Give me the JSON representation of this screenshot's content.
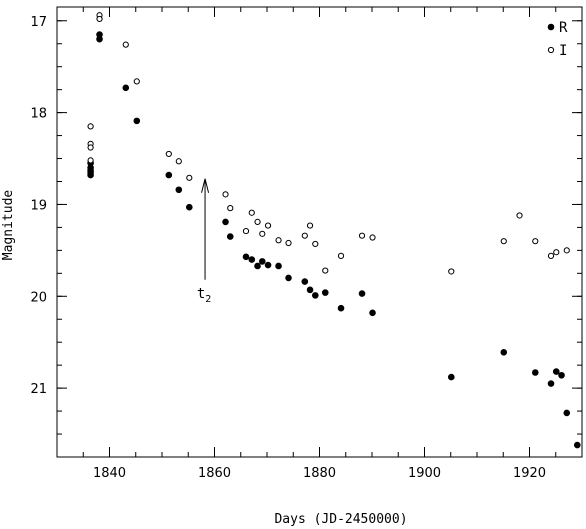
{
  "chart_data": {
    "type": "scatter",
    "xlabel": "Days (JD-2450000)",
    "ylabel": "Magnitude",
    "xlim": [
      1830,
      1930
    ],
    "ylim": [
      21.75,
      16.85
    ],
    "y_inverted": true,
    "x_ticks": [
      1840,
      1860,
      1880,
      1900,
      1920
    ],
    "x_minor_step": 5,
    "y_ticks": [
      17,
      18,
      19,
      20,
      21
    ],
    "y_minor_step": 0.25,
    "grid": false,
    "legend_position": "top-right",
    "series": [
      {
        "name": "R",
        "marker": "filled-circle",
        "color": "#000000",
        "points": [
          [
            1836.4,
            18.55
          ],
          [
            1836.4,
            18.6
          ],
          [
            1836.4,
            18.63
          ],
          [
            1836.4,
            18.65
          ],
          [
            1836.4,
            18.68
          ],
          [
            1838.1,
            17.15
          ],
          [
            1838.1,
            17.2
          ],
          [
            1843.1,
            17.73
          ],
          [
            1845.2,
            18.09
          ],
          [
            1851.3,
            18.68
          ],
          [
            1853.2,
            18.84
          ],
          [
            1855.2,
            19.03
          ],
          [
            1862.1,
            19.19
          ],
          [
            1863.0,
            19.35
          ],
          [
            1866.0,
            19.57
          ],
          [
            1867.1,
            19.6
          ],
          [
            1868.2,
            19.67
          ],
          [
            1869.1,
            19.62
          ],
          [
            1870.2,
            19.66
          ],
          [
            1872.2,
            19.67
          ],
          [
            1874.1,
            19.8
          ],
          [
            1877.2,
            19.84
          ],
          [
            1878.2,
            19.93
          ],
          [
            1879.2,
            19.99
          ],
          [
            1881.1,
            19.96
          ],
          [
            1884.1,
            20.13
          ],
          [
            1888.1,
            19.97
          ],
          [
            1890.1,
            20.18
          ],
          [
            1905.1,
            20.88
          ],
          [
            1915.1,
            20.61
          ],
          [
            1921.1,
            20.83
          ],
          [
            1924.1,
            20.95
          ],
          [
            1925.1,
            20.82
          ],
          [
            1926.1,
            20.86
          ],
          [
            1927.1,
            21.27
          ],
          [
            1929.1,
            21.62
          ]
        ]
      },
      {
        "name": "I",
        "marker": "open-circle",
        "color": "#000000",
        "points": [
          [
            1836.4,
            18.15
          ],
          [
            1836.4,
            18.34
          ],
          [
            1836.4,
            18.38
          ],
          [
            1836.4,
            18.52
          ],
          [
            1838.1,
            16.94
          ],
          [
            1838.1,
            16.98
          ],
          [
            1843.1,
            17.26
          ],
          [
            1845.2,
            17.66
          ],
          [
            1851.3,
            18.45
          ],
          [
            1853.2,
            18.53
          ],
          [
            1855.2,
            18.71
          ],
          [
            1862.1,
            18.89
          ],
          [
            1863.0,
            19.04
          ],
          [
            1866.0,
            19.29
          ],
          [
            1867.1,
            19.09
          ],
          [
            1868.2,
            19.19
          ],
          [
            1869.1,
            19.32
          ],
          [
            1870.2,
            19.23
          ],
          [
            1872.2,
            19.39
          ],
          [
            1874.1,
            19.42
          ],
          [
            1877.2,
            19.34
          ],
          [
            1878.2,
            19.23
          ],
          [
            1879.2,
            19.43
          ],
          [
            1881.1,
            19.72
          ],
          [
            1884.1,
            19.56
          ],
          [
            1888.1,
            19.34
          ],
          [
            1890.1,
            19.36
          ],
          [
            1905.1,
            19.73
          ],
          [
            1915.1,
            19.4
          ],
          [
            1918.1,
            19.12
          ],
          [
            1921.1,
            19.4
          ],
          [
            1924.1,
            19.56
          ],
          [
            1925.1,
            19.52
          ],
          [
            1927.1,
            19.5
          ]
        ]
      }
    ],
    "annotations": [
      {
        "label": "t",
        "subscript": "2",
        "kind": "arrow-up",
        "x": 1858.2,
        "y_from": 19.82,
        "y_to": 18.72
      }
    ]
  }
}
